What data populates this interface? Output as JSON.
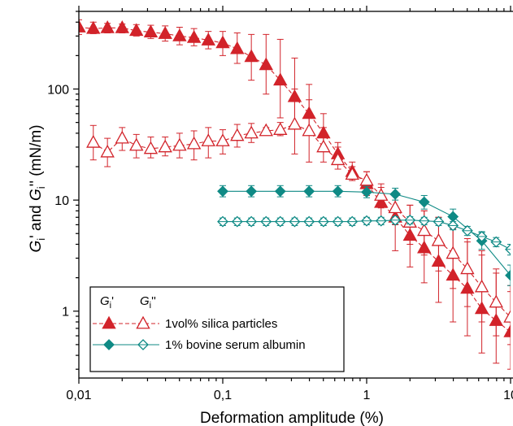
{
  "chart_data": {
    "type": "scatter",
    "x_scale": "log",
    "y_scale": "log",
    "xlim": [
      0.01,
      10
    ],
    "ylim": [
      0.25,
      500
    ],
    "xlabel": "Deformation amplitude (%)",
    "ylabel": {
      "g1": "G",
      "sub1": "i",
      "mid": "' and ",
      "g2": "G",
      "sub2": "i",
      "end": "'' (mN/m)"
    },
    "x_ticks": [
      {
        "value": 0.01,
        "label": "0,01"
      },
      {
        "value": 0.1,
        "label": "0,1"
      },
      {
        "value": 1,
        "label": "1"
      },
      {
        "value": 10,
        "label": "10"
      }
    ],
    "y_ticks": [
      {
        "value": 1,
        "label": "1"
      },
      {
        "value": 10,
        "label": "10"
      },
      {
        "value": 100,
        "label": "100"
      }
    ],
    "legend": {
      "position": "bottom-left",
      "header_g_storage": "G",
      "header_sub_storage": "i",
      "header_prime_storage": "'",
      "header_g_loss": "G",
      "header_sub_loss": "i",
      "header_prime_loss": "''",
      "entries": [
        "1vol% silica particles",
        "1% bovine serum albumin"
      ]
    },
    "colors": {
      "silica": "#d2232a",
      "bsa": "#0f8a85"
    },
    "series": [
      {
        "group": "silica",
        "modulus": "storage",
        "marker": "triangle",
        "filled": true,
        "x": [
          0.01,
          0.0126,
          0.0158,
          0.02,
          0.0251,
          0.0316,
          0.0398,
          0.0501,
          0.0631,
          0.0794,
          0.1,
          0.126,
          0.158,
          0.2,
          0.251,
          0.316,
          0.398,
          0.501,
          0.631,
          0.794,
          1.0,
          1.26,
          1.58,
          2.0,
          2.51,
          3.16,
          3.98,
          5.01,
          6.31,
          7.94,
          10.0
        ],
        "y": [
          360,
          350,
          355,
          355,
          335,
          325,
          315,
          300,
          290,
          275,
          260,
          230,
          195,
          165,
          120,
          85,
          60,
          40,
          26,
          18,
          14,
          9.5,
          7.0,
          4.8,
          3.7,
          2.8,
          2.1,
          1.6,
          1.05,
          0.82,
          0.65
        ],
        "err_hi": [
          420,
          400,
          390,
          385,
          380,
          375,
          370,
          360,
          350,
          330,
          330,
          320,
          310,
          310,
          280,
          190,
          110,
          60,
          33,
          22,
          18,
          13,
          11,
          9,
          8,
          7,
          5.5,
          4.2,
          3.2,
          2.2,
          1.5
        ],
        "err_lo": [
          310,
          315,
          320,
          320,
          300,
          285,
          270,
          250,
          245,
          230,
          200,
          170,
          120,
          90,
          55,
          45,
          40,
          30,
          22,
          15,
          11,
          6.5,
          3.5,
          2.5,
          1.8,
          1.2,
          0.8,
          0.6,
          0.42,
          0.34,
          0.3
        ]
      },
      {
        "group": "silica",
        "modulus": "loss",
        "marker": "triangle",
        "filled": false,
        "x": [
          0.0126,
          0.0158,
          0.02,
          0.0251,
          0.0316,
          0.0398,
          0.0501,
          0.0631,
          0.0794,
          0.1,
          0.126,
          0.158,
          0.2,
          0.251,
          0.316,
          0.398,
          0.501,
          0.631,
          0.794,
          1.0,
          1.26,
          1.58,
          2.0,
          2.51,
          3.16,
          3.98,
          5.01,
          6.31,
          7.94,
          10.0
        ],
        "y": [
          33,
          27,
          36,
          31,
          29,
          30,
          31,
          32,
          34,
          34,
          38,
          40,
          42,
          43,
          48,
          42,
          30,
          23,
          17,
          15,
          11,
          8.5,
          6.3,
          5.3,
          4.3,
          3.3,
          2.4,
          1.65,
          1.2,
          0.88
        ],
        "err_hi": [
          47,
          36,
          45,
          39,
          37,
          37,
          40,
          42,
          45,
          43,
          48,
          49,
          45,
          50,
          100,
          80,
          45,
          30,
          20,
          18,
          14,
          11,
          9,
          8,
          7,
          6,
          4.5,
          3.5,
          2.4,
          1.7
        ],
        "err_lo": [
          23,
          20,
          28,
          24,
          24,
          25,
          24,
          23,
          24,
          26,
          30,
          33,
          40,
          38,
          26,
          22,
          22,
          19,
          15,
          12,
          8.5,
          6,
          4,
          3.2,
          2.3,
          1.6,
          1.1,
          0.8,
          0.6,
          0.5
        ]
      },
      {
        "group": "bsa",
        "modulus": "storage",
        "marker": "diamond",
        "filled": true,
        "x": [
          0.1,
          0.158,
          0.251,
          0.398,
          0.631,
          1.0,
          1.58,
          2.51,
          3.98,
          6.31,
          10.0
        ],
        "y": [
          12,
          12,
          12,
          12,
          12,
          11.8,
          11.3,
          9.6,
          7.1,
          4.3,
          2.1
        ],
        "err_hi": [
          13.5,
          13.5,
          13.5,
          13.5,
          13.5,
          13.3,
          12.8,
          11.0,
          8.3,
          5.2,
          2.6
        ],
        "err_lo": [
          10.7,
          10.7,
          10.7,
          10.7,
          10.7,
          10.5,
          10.0,
          8.3,
          6.0,
          3.6,
          1.7
        ]
      },
      {
        "group": "bsa",
        "modulus": "loss",
        "marker": "diamond",
        "filled": false,
        "x": [
          0.1,
          0.126,
          0.158,
          0.2,
          0.251,
          0.316,
          0.398,
          0.501,
          0.631,
          0.794,
          1.0,
          1.26,
          1.58,
          2.0,
          2.51,
          3.16,
          3.98,
          5.01,
          6.31,
          7.94,
          10.0
        ],
        "y": [
          6.4,
          6.4,
          6.4,
          6.4,
          6.4,
          6.4,
          6.4,
          6.4,
          6.4,
          6.4,
          6.5,
          6.5,
          6.6,
          6.6,
          6.5,
          6.4,
          5.9,
          5.3,
          4.7,
          4.2,
          3.6
        ],
        "err_hi": [
          6.9,
          6.9,
          6.9,
          6.9,
          6.9,
          6.9,
          6.9,
          6.9,
          6.9,
          6.9,
          7.0,
          7.0,
          7.1,
          7.1,
          7.0,
          6.9,
          6.4,
          5.8,
          5.1,
          4.6,
          4.0
        ],
        "err_lo": [
          5.9,
          5.9,
          5.9,
          5.9,
          5.9,
          5.9,
          5.9,
          5.9,
          5.9,
          5.9,
          6.0,
          6.0,
          6.1,
          6.1,
          6.0,
          5.9,
          5.4,
          4.8,
          4.3,
          3.8,
          3.2
        ]
      }
    ]
  }
}
